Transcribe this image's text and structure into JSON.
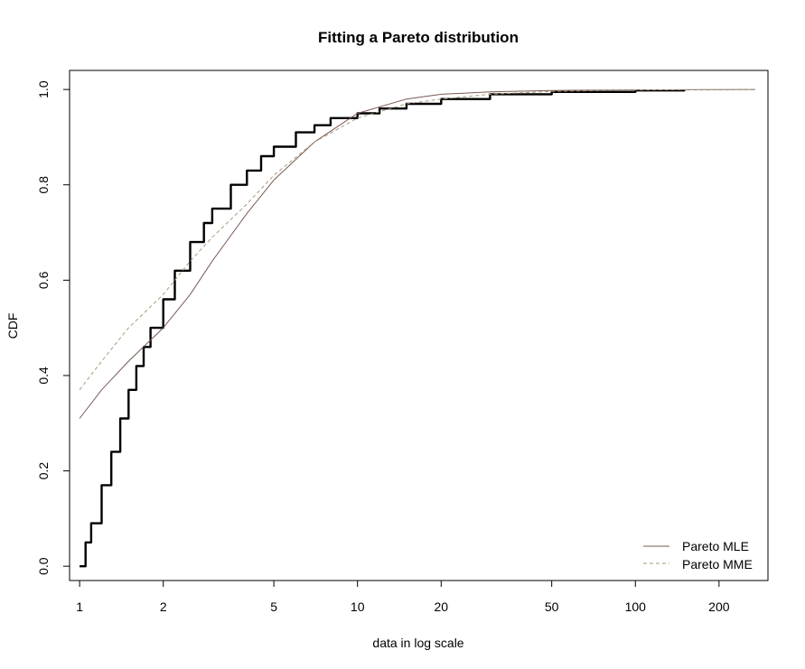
{
  "chart_data": {
    "type": "line",
    "title": "Fitting a Pareto distribution",
    "xlabel": "data in log scale",
    "ylabel": "CDF",
    "x_scale": "log",
    "xlim": [
      0.92,
      300
    ],
    "ylim": [
      -0.03,
      1.04
    ],
    "x_ticks": [
      1,
      2,
      5,
      10,
      20,
      50,
      100,
      200
    ],
    "x_tick_labels": [
      "1",
      "2",
      "5",
      "10",
      "20",
      "50",
      "100",
      "200"
    ],
    "y_ticks": [
      0,
      0.2,
      0.4,
      0.6,
      0.8,
      1
    ],
    "y_tick_labels": [
      "0.0",
      "0.2",
      "0.4",
      "0.6",
      "0.8",
      "1.0"
    ],
    "grid": false,
    "legend_position": "bottom-right",
    "series": [
      {
        "role": "empirical",
        "color": "#000000",
        "style": "step",
        "x": [
          1.0,
          1.05,
          1.1,
          1.2,
          1.3,
          1.4,
          1.5,
          1.6,
          1.7,
          1.8,
          2.0,
          2.2,
          2.5,
          2.8,
          3.0,
          3.5,
          4.0,
          4.5,
          5.0,
          6.0,
          7.0,
          8.0,
          10.0,
          12.0,
          15.0,
          20.0,
          30.0,
          50.0,
          100.0,
          150.0
        ],
        "y": [
          0.0,
          0.05,
          0.09,
          0.17,
          0.24,
          0.31,
          0.37,
          0.42,
          0.46,
          0.5,
          0.56,
          0.62,
          0.68,
          0.72,
          0.75,
          0.8,
          0.83,
          0.86,
          0.88,
          0.91,
          0.925,
          0.94,
          0.95,
          0.96,
          0.97,
          0.98,
          0.99,
          0.995,
          0.998,
          1.0
        ]
      },
      {
        "name": "Pareto MLE",
        "color": "#7a5a55",
        "style": "solid",
        "x": [
          1.0,
          1.2,
          1.5,
          2.0,
          2.5,
          3.0,
          4.0,
          5.0,
          7.0,
          10.0,
          15.0,
          20.0,
          30.0,
          50.0,
          100.0,
          270.0
        ],
        "y": [
          0.31,
          0.37,
          0.43,
          0.5,
          0.57,
          0.64,
          0.74,
          0.81,
          0.89,
          0.95,
          0.98,
          0.99,
          0.995,
          0.998,
          0.999,
          1.0
        ]
      },
      {
        "name": "Pareto MME",
        "color": "#a89a7a",
        "style": "dashed",
        "x": [
          1.0,
          1.2,
          1.5,
          2.0,
          2.5,
          3.0,
          4.0,
          5.0,
          7.0,
          10.0,
          15.0,
          20.0,
          30.0,
          50.0,
          100.0,
          270.0
        ],
        "y": [
          0.37,
          0.43,
          0.5,
          0.57,
          0.64,
          0.69,
          0.76,
          0.82,
          0.89,
          0.94,
          0.97,
          0.98,
          0.99,
          0.996,
          0.999,
          1.0
        ]
      }
    ]
  }
}
